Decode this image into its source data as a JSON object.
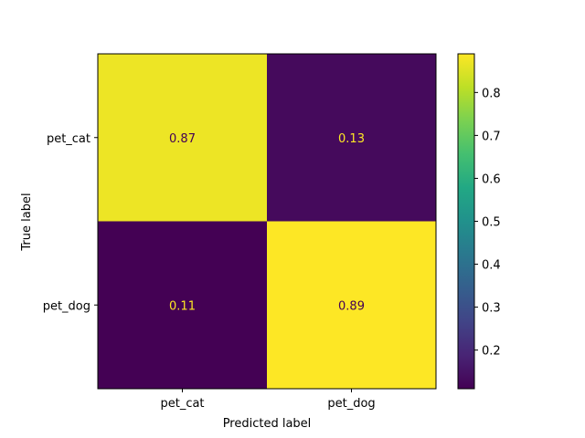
{
  "chart_data": {
    "type": "heatmap",
    "title": "",
    "xlabel": "Predicted label",
    "ylabel": "True label",
    "x_categories": [
      "pet_cat",
      "pet_dog"
    ],
    "y_categories": [
      "pet_cat",
      "pet_dog"
    ],
    "values": [
      [
        0.87,
        0.13
      ],
      [
        0.11,
        0.89
      ]
    ],
    "cell_labels": [
      [
        "0.87",
        "0.13"
      ],
      [
        "0.11",
        "0.89"
      ]
    ],
    "colormap": "viridis",
    "colorbar": {
      "range": [
        0.11,
        0.89
      ],
      "ticks": [
        0.2,
        0.3,
        0.4,
        0.5,
        0.6,
        0.7,
        0.8
      ],
      "tick_labels": [
        "0.2",
        "0.3",
        "0.4",
        "0.5",
        "0.6",
        "0.7",
        "0.8"
      ]
    },
    "text_color_on_dark": "#fde725",
    "text_color_on_light": "#440154",
    "grid": false
  }
}
